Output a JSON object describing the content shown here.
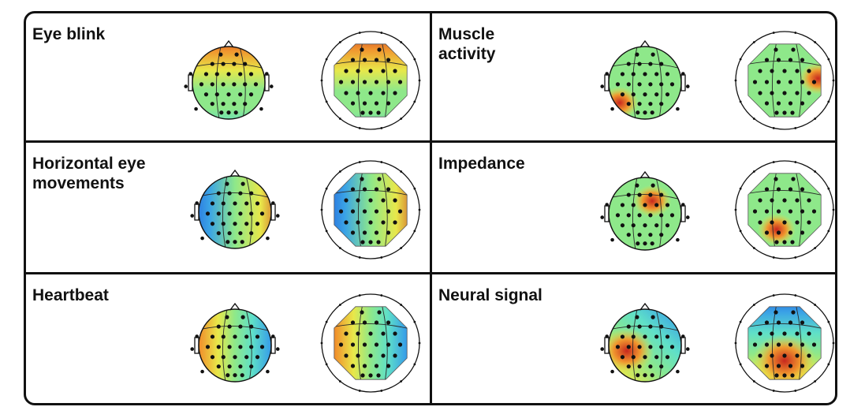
{
  "panels": [
    {
      "id": "eye-blink",
      "title": "Eye blink",
      "left_map": {
        "kind": "frontal",
        "band": "top"
      },
      "right_map": {
        "kind": "frontal",
        "band": "top"
      }
    },
    {
      "id": "muscle-activity",
      "title": "Muscle\nactivity",
      "left_map": {
        "kind": "spot",
        "hot": "lower-left"
      },
      "right_map": {
        "kind": "spot",
        "hot": "right"
      }
    },
    {
      "id": "horizontal-eye-movements",
      "title": "Horizontal eye\nmovements",
      "left_map": {
        "kind": "gradient",
        "direction": "blue-left-red-right"
      },
      "right_map": {
        "kind": "gradient",
        "direction": "blue-left-red-right"
      }
    },
    {
      "id": "impedance",
      "title": "Impedance",
      "left_map": {
        "kind": "spot",
        "hot": "upper-right"
      },
      "right_map": {
        "kind": "spot",
        "hot": "lower-left"
      }
    },
    {
      "id": "heartbeat",
      "title": "Heartbeat",
      "left_map": {
        "kind": "gradient",
        "direction": "red-left-blue-right"
      },
      "right_map": {
        "kind": "gradient",
        "direction": "red-left-blue-right"
      }
    },
    {
      "id": "neural-signal",
      "title": "Neural signal",
      "left_map": {
        "kind": "dipole",
        "hot": "lower-left",
        "cold": "upper-right"
      },
      "right_map": {
        "kind": "dipole",
        "hot": "bottom",
        "cold": "top"
      }
    }
  ],
  "colors": {
    "frame": "#111111",
    "electrode": "#111111",
    "contour": "#2a2a2a",
    "colormap": [
      "#1e4fd8",
      "#3aa3e6",
      "#5fe0c8",
      "#8ee88a",
      "#e8e84a",
      "#f0962e",
      "#c8281e"
    ]
  }
}
